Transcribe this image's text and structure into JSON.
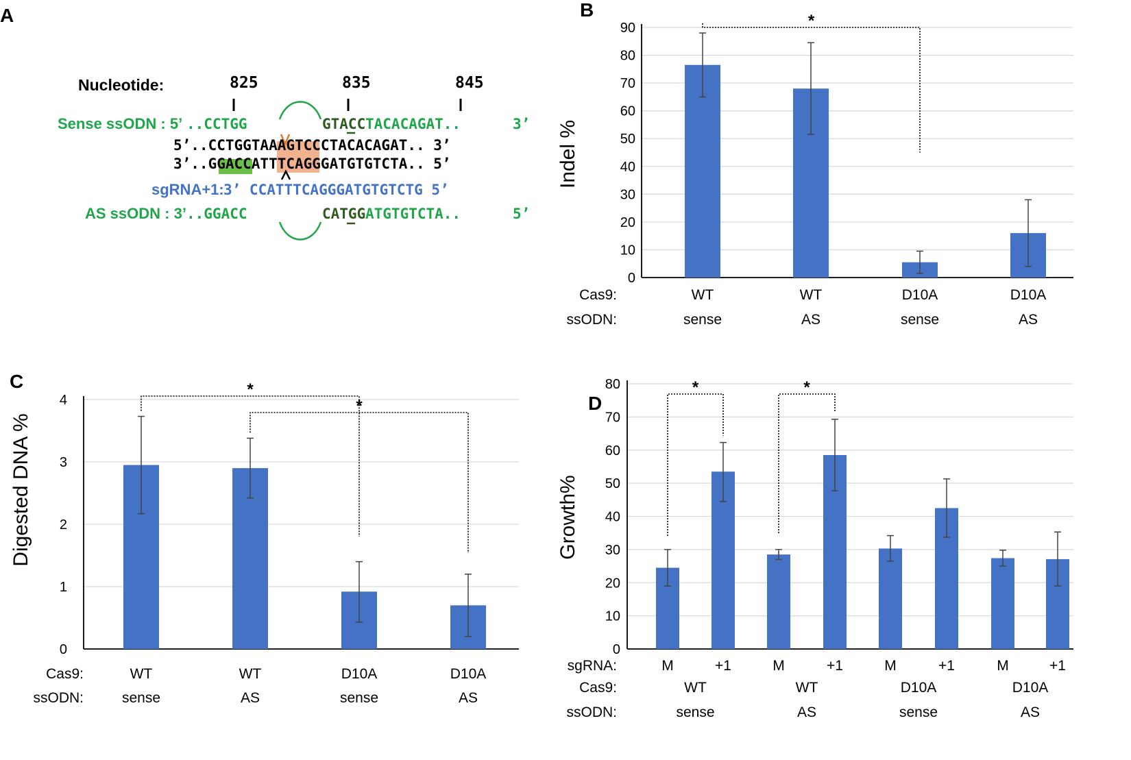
{
  "panel_letters": {
    "a": "A",
    "b": "B",
    "c": "C",
    "d": "D"
  },
  "panel_a": {
    "nucleotide_label": "Nucleotide:",
    "positions": [
      "825",
      "835",
      "845"
    ],
    "sense_label": "Sense ssODN : 5’",
    "sense_left": "..CCTGG",
    "sense_right_hl": "GTACC",
    "sense_right": "TACACAGAT..",
    "sense_end": "3’",
    "top_strand": "5’..CCTGGTAAAGTCCCTACACAGAT..  3’",
    "bottom_strand": "3’..GGACCATTTCAGGGATGTGTCTA..  5’",
    "sgrna_label": "sgRNA+1:",
    "sgrna_seq": "3’ CCATTTCAGGGATGTGTCTG  5’",
    "as_label": "AS ssODN : 3’",
    "as_left": "..GGACC",
    "as_right_hl": "CATGG",
    "as_right": "ATGTGTCTA..",
    "as_end": "5’",
    "colors": {
      "green": "#1fa64a",
      "blue": "#4472c4",
      "orange": "#f3b28f",
      "green_box": "#6cc04a"
    }
  },
  "chart_data": [
    {
      "panel": "B",
      "type": "bar",
      "ylabel": "Indel %",
      "ylim": [
        0,
        90
      ],
      "yticks": [
        0,
        10,
        20,
        30,
        40,
        50,
        60,
        70,
        80,
        90
      ],
      "values": [
        76.5,
        68,
        5.5,
        16
      ],
      "errors": [
        [
          65,
          88
        ],
        [
          51.5,
          84.5
        ],
        [
          1.5,
          9.5
        ],
        [
          4,
          28
        ]
      ],
      "row_labels": [
        "Cas9:",
        "ssODN:"
      ],
      "categories": [
        [
          "WT",
          "sense"
        ],
        [
          "WT",
          "AS"
        ],
        [
          "D10A",
          "sense"
        ],
        [
          "D10A",
          "AS"
        ]
      ],
      "significance": [
        {
          "from": 0,
          "to": 2,
          "label": "*"
        }
      ],
      "color": "#4472c4"
    },
    {
      "panel": "C",
      "type": "bar",
      "ylabel": "Digested DNA %",
      "ylim": [
        0,
        4
      ],
      "yticks": [
        0,
        1,
        2,
        3,
        4
      ],
      "values": [
        2.95,
        2.9,
        0.92,
        0.7
      ],
      "errors": [
        [
          2.17,
          3.73
        ],
        [
          2.42,
          3.38
        ],
        [
          0.43,
          1.4
        ],
        [
          0.2,
          1.2
        ]
      ],
      "row_labels": [
        "Cas9:",
        "ssODN:"
      ],
      "categories": [
        [
          "WT",
          "sense"
        ],
        [
          "WT",
          "AS"
        ],
        [
          "D10A",
          "sense"
        ],
        [
          "D10A",
          "AS"
        ]
      ],
      "significance": [
        {
          "from": 0,
          "to": 2,
          "label": "*"
        },
        {
          "from": 1,
          "to": 3,
          "label": "*"
        }
      ],
      "color": "#4472c4"
    },
    {
      "panel": "D",
      "type": "bar",
      "ylabel": "Growth%",
      "ylim": [
        0,
        80
      ],
      "yticks": [
        0,
        10,
        20,
        30,
        40,
        50,
        60,
        70,
        80
      ],
      "values": [
        24.5,
        53.5,
        28.5,
        58.5,
        30.3,
        42.5,
        27.4,
        27.1
      ],
      "errors": [
        [
          19,
          30
        ],
        [
          44.5,
          62.3
        ],
        [
          27,
          30
        ],
        [
          47.7,
          69.3
        ],
        [
          26.5,
          34.2
        ],
        [
          33.7,
          51.3
        ],
        [
          25,
          29.8
        ],
        [
          19,
          35.3
        ]
      ],
      "row_labels": [
        "sgRNA:",
        "Cas9:",
        "ssODN:"
      ],
      "sgrna": [
        "M",
        "+1",
        "M",
        "+1",
        "M",
        "+1",
        "M",
        "+1"
      ],
      "groups": [
        [
          "WT",
          "sense"
        ],
        [
          "WT",
          "AS"
        ],
        [
          "D10A",
          "sense"
        ],
        [
          "D10A",
          "AS"
        ]
      ],
      "significance": [
        {
          "from": 0,
          "to": 1,
          "label": "*"
        },
        {
          "from": 2,
          "to": 3,
          "label": "*"
        }
      ],
      "color": "#4472c4"
    }
  ]
}
